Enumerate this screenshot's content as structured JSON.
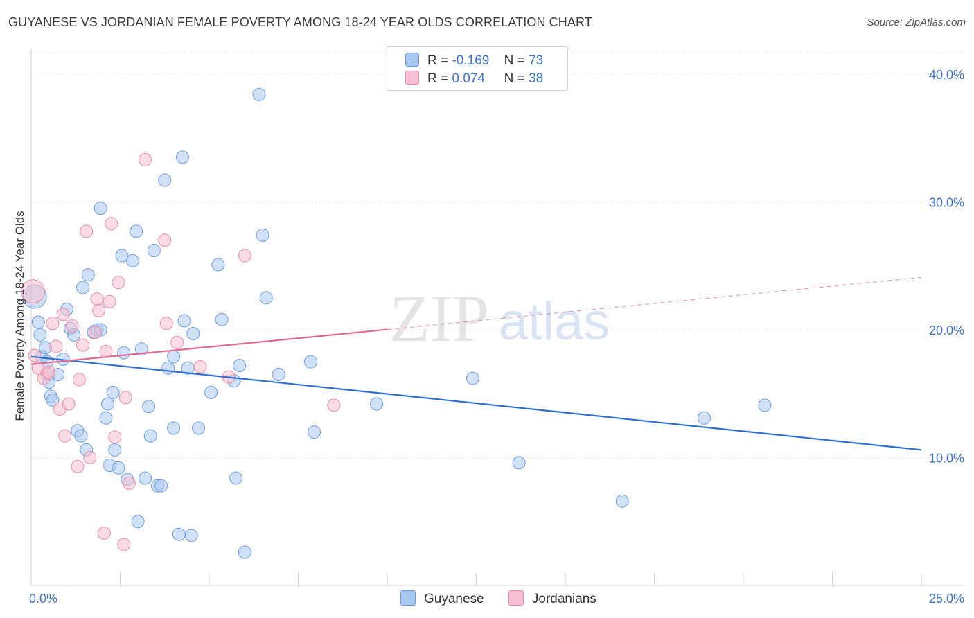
{
  "title": "GUYANESE VS JORDANIAN FEMALE POVERTY AMONG 18-24 YEAR OLDS CORRELATION CHART",
  "source": "Source: ZipAtlas.com",
  "watermark": {
    "zip": "ZIP",
    "atlas": "atlas"
  },
  "colors": {
    "guyanese_fill": "#a9c8f0",
    "guyanese_stroke": "#6a9be0",
    "guyanese_line": "#2f6fd0",
    "jordanian_fill": "#f7bfcf",
    "jordanian_stroke": "#e88aa6",
    "jordanian_line": "#e06a92",
    "axis_text": "#3f74c9",
    "grid": "#e3e3e3"
  },
  "legend_top": {
    "rows": [
      {
        "r_label": "R =",
        "r_value": "-0.169",
        "n_label": "N =",
        "n_value": "73"
      },
      {
        "r_label": "R =",
        "r_value": "0.074",
        "n_label": "N =",
        "n_value": "38"
      }
    ]
  },
  "legend_bottom": [
    "Guyanese",
    "Jordanians"
  ],
  "chart_data": {
    "type": "scatter",
    "title": "GUYANESE VS JORDANIAN FEMALE POVERTY AMONG 18-24 YEAR OLDS CORRELATION CHART",
    "xlabel": "",
    "ylabel": "Female Poverty Among 18-24 Year Olds",
    "xlim": [
      0,
      25
    ],
    "ylim": [
      0,
      42
    ],
    "x_tick_labels": [
      "0.0%",
      "25.0%"
    ],
    "y_ticks": [
      10,
      20,
      30,
      40
    ],
    "y_tick_labels": [
      "10.0%",
      "20.0%",
      "30.0%",
      "40.0%"
    ],
    "grid": true,
    "legend_position": "top-center",
    "series": [
      {
        "name": "Guyanese",
        "r": -0.169,
        "n": 73,
        "trend": {
          "x": [
            0,
            25
          ],
          "y": [
            17.9,
            10.6
          ],
          "dashed_from": null
        },
        "points": [
          [
            0.1,
            22.6
          ],
          [
            0.2,
            20.6
          ],
          [
            0.25,
            19.6
          ],
          [
            0.3,
            17.9
          ],
          [
            0.4,
            18.6
          ],
          [
            0.45,
            17.5
          ],
          [
            0.5,
            16.5
          ],
          [
            0.5,
            15.9
          ],
          [
            0.55,
            14.8
          ],
          [
            0.6,
            14.5
          ],
          [
            0.75,
            16.5
          ],
          [
            0.9,
            17.7
          ],
          [
            1.0,
            21.6
          ],
          [
            1.1,
            20.1
          ],
          [
            1.2,
            19.6
          ],
          [
            1.3,
            12.1
          ],
          [
            1.4,
            11.7
          ],
          [
            1.45,
            23.3
          ],
          [
            1.55,
            10.6
          ],
          [
            1.6,
            24.3
          ],
          [
            1.75,
            19.8
          ],
          [
            1.85,
            20.0
          ],
          [
            1.95,
            20.0
          ],
          [
            1.95,
            29.5
          ],
          [
            2.1,
            13.1
          ],
          [
            2.15,
            14.2
          ],
          [
            2.2,
            9.4
          ],
          [
            2.3,
            15.1
          ],
          [
            2.35,
            10.6
          ],
          [
            2.45,
            9.2
          ],
          [
            2.55,
            25.8
          ],
          [
            2.6,
            18.2
          ],
          [
            2.7,
            8.3
          ],
          [
            2.85,
            25.4
          ],
          [
            2.95,
            27.7
          ],
          [
            3.0,
            5.0
          ],
          [
            3.1,
            18.5
          ],
          [
            3.2,
            8.4
          ],
          [
            3.3,
            14.0
          ],
          [
            3.35,
            11.7
          ],
          [
            3.45,
            26.2
          ],
          [
            3.55,
            7.8
          ],
          [
            3.65,
            7.8
          ],
          [
            3.75,
            31.7
          ],
          [
            3.85,
            17.0
          ],
          [
            4.0,
            12.3
          ],
          [
            4.0,
            17.9
          ],
          [
            4.15,
            4.0
          ],
          [
            4.25,
            33.5
          ],
          [
            4.3,
            20.7
          ],
          [
            4.4,
            17.0
          ],
          [
            4.5,
            3.9
          ],
          [
            4.55,
            19.7
          ],
          [
            4.7,
            12.3
          ],
          [
            5.05,
            15.1
          ],
          [
            5.25,
            25.1
          ],
          [
            5.35,
            20.8
          ],
          [
            5.7,
            16.0
          ],
          [
            5.75,
            8.4
          ],
          [
            5.85,
            17.2
          ],
          [
            6.0,
            2.6
          ],
          [
            6.4,
            38.4
          ],
          [
            6.5,
            27.4
          ],
          [
            6.6,
            22.5
          ],
          [
            6.95,
            16.5
          ],
          [
            7.85,
            17.5
          ],
          [
            7.95,
            12.0
          ],
          [
            9.7,
            14.2
          ],
          [
            12.4,
            16.2
          ],
          [
            13.7,
            9.6
          ],
          [
            16.6,
            6.6
          ],
          [
            18.9,
            13.1
          ],
          [
            20.6,
            14.1
          ]
        ]
      },
      {
        "name": "Jordanians",
        "r": 0.074,
        "n": 38,
        "trend": {
          "x": [
            0,
            25
          ],
          "y": [
            17.3,
            24.1
          ],
          "dashed_from": 10.0
        },
        "points": [
          [
            0.05,
            23.0
          ],
          [
            0.1,
            18.0
          ],
          [
            0.2,
            17.0
          ],
          [
            0.35,
            16.2
          ],
          [
            0.45,
            16.6
          ],
          [
            0.5,
            16.7
          ],
          [
            0.6,
            20.5
          ],
          [
            0.7,
            18.7
          ],
          [
            0.8,
            13.8
          ],
          [
            0.9,
            21.2
          ],
          [
            0.95,
            11.7
          ],
          [
            1.05,
            14.2
          ],
          [
            1.15,
            20.3
          ],
          [
            1.3,
            9.3
          ],
          [
            1.35,
            16.1
          ],
          [
            1.45,
            18.8
          ],
          [
            1.55,
            27.7
          ],
          [
            1.65,
            10.0
          ],
          [
            1.8,
            19.8
          ],
          [
            1.85,
            22.4
          ],
          [
            1.9,
            21.5
          ],
          [
            2.05,
            4.1
          ],
          [
            2.1,
            18.3
          ],
          [
            2.2,
            22.2
          ],
          [
            2.25,
            28.3
          ],
          [
            2.35,
            11.6
          ],
          [
            2.45,
            23.7
          ],
          [
            2.6,
            3.2
          ],
          [
            2.65,
            14.7
          ],
          [
            2.75,
            8.0
          ],
          [
            3.2,
            33.3
          ],
          [
            3.75,
            27.0
          ],
          [
            3.8,
            20.5
          ],
          [
            4.1,
            19.0
          ],
          [
            4.75,
            17.1
          ],
          [
            5.55,
            16.3
          ],
          [
            6.0,
            25.8
          ],
          [
            8.5,
            14.1
          ]
        ]
      }
    ]
  }
}
